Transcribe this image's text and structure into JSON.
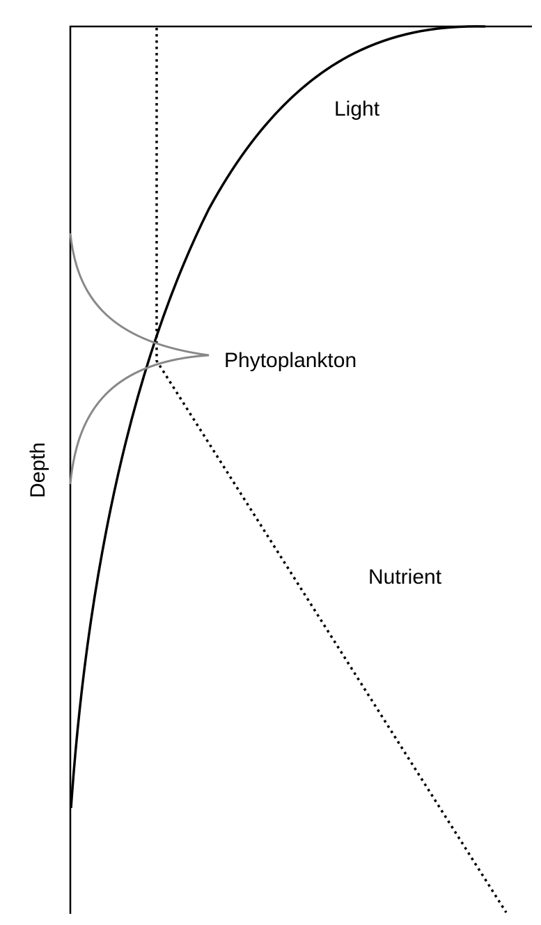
{
  "diagram": {
    "depth_label": "Depth",
    "labels": {
      "light": "Light",
      "phytoplankton": "Phytoplankton",
      "nutrient": "Nutrient"
    },
    "colors": {
      "axis": "#000000",
      "light": "#000000",
      "nutrient": "#000000",
      "phytoplankton": "#888888",
      "text": "#000000"
    }
  }
}
